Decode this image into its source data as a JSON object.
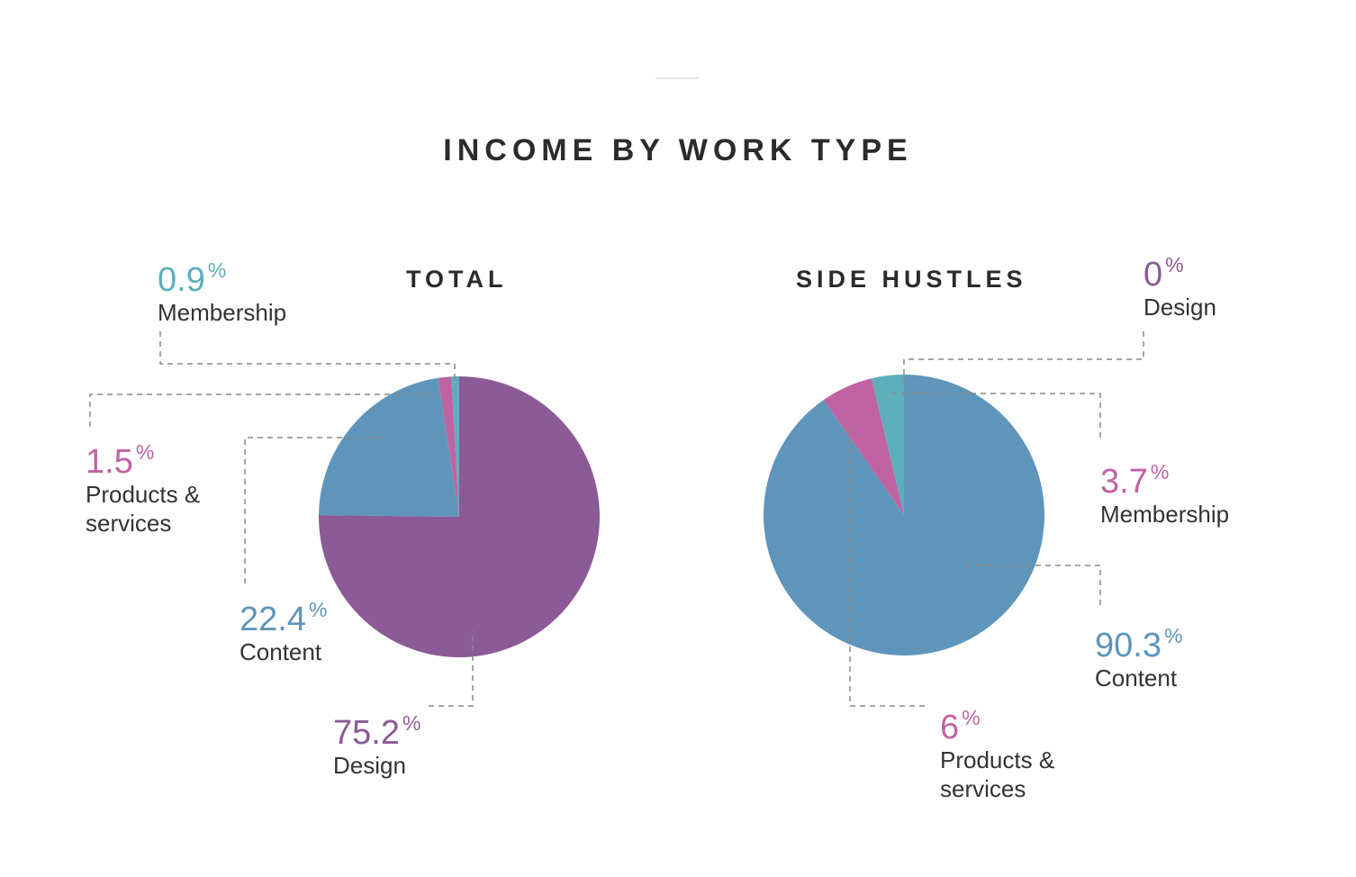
{
  "title": "INCOME BY WORK TYPE",
  "colors": {
    "design": "#8c5a96",
    "content": "#5f95bb",
    "products": "#c063a3",
    "membership": "#5cafba",
    "leader": "#888888"
  },
  "chart_data": [
    {
      "type": "pie",
      "title": "TOTAL",
      "slices": [
        {
          "label": "Design",
          "value": 75.2,
          "color": "#8c5a96"
        },
        {
          "label": "Content",
          "value": 22.4,
          "color": "#5f95bb"
        },
        {
          "label": "Products & services",
          "value": 1.5,
          "color": "#c063a3"
        },
        {
          "label": "Membership",
          "value": 0.9,
          "color": "#5cafba"
        }
      ]
    },
    {
      "type": "pie",
      "title": "SIDE HUSTLES",
      "slices": [
        {
          "label": "Design",
          "value": 0,
          "color": "#8c5a96"
        },
        {
          "label": "Content",
          "value": 90.3,
          "color": "#5f95bb"
        },
        {
          "label": "Products & services",
          "value": 6,
          "color": "#c063a3"
        },
        {
          "label": "Membership",
          "value": 3.7,
          "color": "#5cafba"
        }
      ]
    }
  ],
  "callouts": {
    "total_membership": {
      "value": "0.9",
      "unit": "%",
      "label": "Membership"
    },
    "total_products": {
      "value": "1.5",
      "unit": "%",
      "label": "Products & services"
    },
    "total_content": {
      "value": "22.4",
      "unit": "%",
      "label": "Content"
    },
    "total_design": {
      "value": "75.2",
      "unit": "%",
      "label": "Design"
    },
    "side_design": {
      "value": "0",
      "unit": "%",
      "label": "Design"
    },
    "side_membership": {
      "value": "3.7",
      "unit": "%",
      "label": "Membership"
    },
    "side_content": {
      "value": "90.3",
      "unit": "%",
      "label": "Content"
    },
    "side_products": {
      "value": "6",
      "unit": "%",
      "label": "Products & services"
    }
  }
}
